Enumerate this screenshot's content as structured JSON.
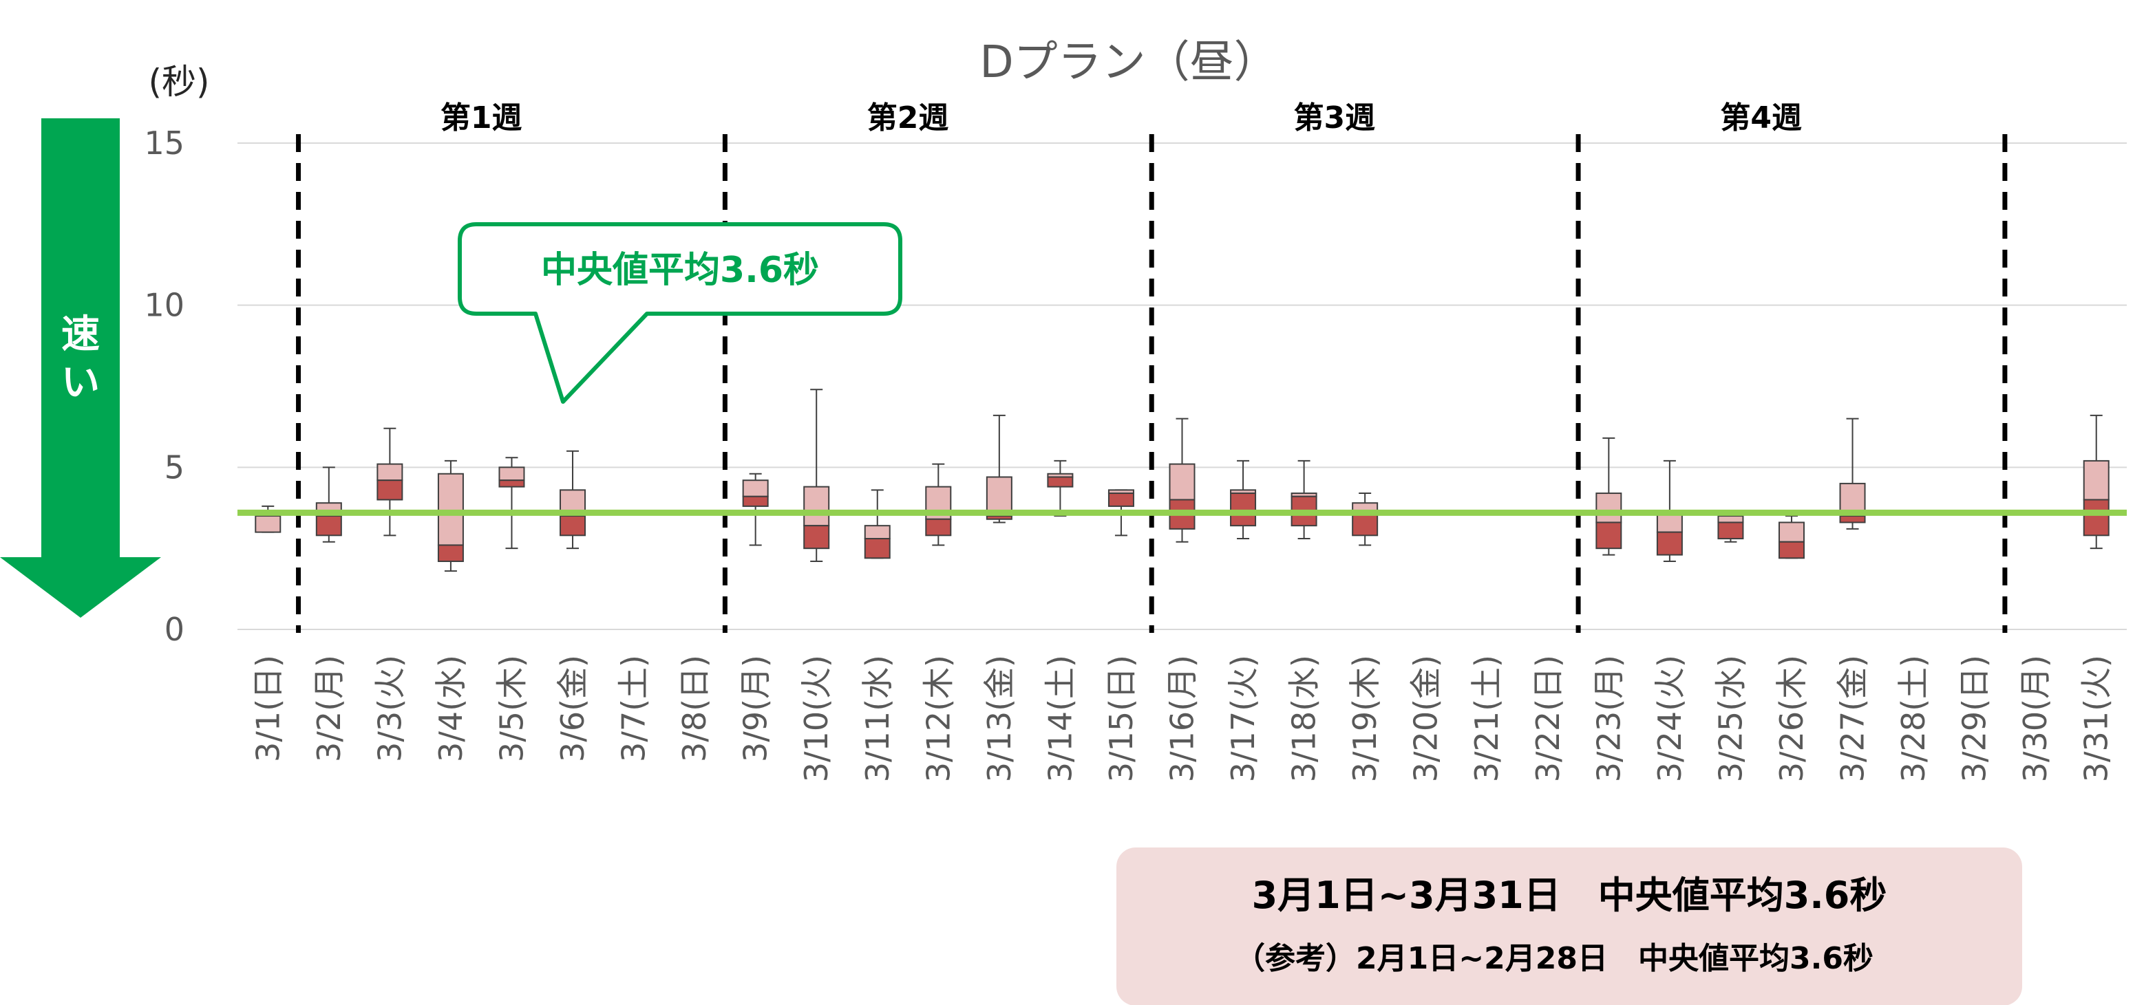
{
  "chart_data": {
    "type": "boxplot",
    "title": "Dプラン（昼）",
    "ylabel": "(秒)",
    "ylim": [
      0,
      15
    ],
    "yticks": [
      0,
      5,
      10,
      15
    ],
    "categories": [
      "3/1(日)",
      "3/2(月)",
      "3/3(火)",
      "3/4(水)",
      "3/5(木)",
      "3/6(金)",
      "3/7(土)",
      "3/8(日)",
      "3/9(月)",
      "3/10(火)",
      "3/11(水)",
      "3/12(木)",
      "3/13(金)",
      "3/14(土)",
      "3/15(日)",
      "3/16(月)",
      "3/17(火)",
      "3/18(水)",
      "3/19(木)",
      "3/20(金)",
      "3/21(土)",
      "3/22(日)",
      "3/23(月)",
      "3/24(火)",
      "3/25(水)",
      "3/26(木)",
      "3/27(金)",
      "3/28(土)",
      "3/29(日)",
      "3/30(月)",
      "3/31(火)"
    ],
    "boxes": [
      {
        "min": 3.0,
        "q1": 3.0,
        "median": 3.0,
        "q3": 3.5,
        "max": 3.8
      },
      {
        "min": 2.7,
        "q1": 2.9,
        "median": 3.5,
        "q3": 3.9,
        "max": 5.0
      },
      {
        "min": 2.9,
        "q1": 4.0,
        "median": 4.6,
        "q3": 5.1,
        "max": 6.2
      },
      {
        "min": 1.8,
        "q1": 2.1,
        "median": 2.6,
        "q3": 4.8,
        "max": 5.2
      },
      {
        "min": 2.5,
        "q1": 4.4,
        "median": 4.6,
        "q3": 5.0,
        "max": 5.3
      },
      {
        "min": 2.5,
        "q1": 2.9,
        "median": 3.5,
        "q3": 4.3,
        "max": 5.5
      },
      null,
      null,
      {
        "min": 2.6,
        "q1": 3.8,
        "median": 4.1,
        "q3": 4.6,
        "max": 4.8
      },
      {
        "min": 2.1,
        "q1": 2.5,
        "median": 3.2,
        "q3": 4.4,
        "max": 7.4
      },
      {
        "min": 2.2,
        "q1": 2.2,
        "median": 2.8,
        "q3": 3.2,
        "max": 4.3
      },
      {
        "min": 2.6,
        "q1": 2.9,
        "median": 3.4,
        "q3": 4.4,
        "max": 5.1
      },
      {
        "min": 3.3,
        "q1": 3.4,
        "median": 3.5,
        "q3": 4.7,
        "max": 6.6
      },
      {
        "min": 3.5,
        "q1": 4.4,
        "median": 4.7,
        "q3": 4.8,
        "max": 5.2
      },
      {
        "min": 2.9,
        "q1": 3.8,
        "median": 4.2,
        "q3": 4.3,
        "max": 4.3
      },
      {
        "min": 2.7,
        "q1": 3.1,
        "median": 4.0,
        "q3": 5.1,
        "max": 6.5
      },
      {
        "min": 2.8,
        "q1": 3.2,
        "median": 4.2,
        "q3": 4.3,
        "max": 5.2
      },
      {
        "min": 2.8,
        "q1": 3.2,
        "median": 4.1,
        "q3": 4.2,
        "max": 5.2
      },
      {
        "min": 2.6,
        "q1": 2.9,
        "median": 3.6,
        "q3": 3.9,
        "max": 4.2
      },
      null,
      null,
      null,
      {
        "min": 2.3,
        "q1": 2.5,
        "median": 3.3,
        "q3": 4.2,
        "max": 5.9
      },
      {
        "min": 2.1,
        "q1": 2.3,
        "median": 3.0,
        "q3": 3.6,
        "max": 5.2
      },
      {
        "min": 2.7,
        "q1": 2.8,
        "median": 3.3,
        "q3": 3.5,
        "max": 3.5
      },
      {
        "min": 2.2,
        "q1": 2.2,
        "median": 2.7,
        "q3": 3.3,
        "max": 3.5
      },
      {
        "min": 3.1,
        "q1": 3.3,
        "median": 3.5,
        "q3": 4.5,
        "max": 6.5
      },
      null,
      null,
      null,
      {
        "min": 2.5,
        "q1": 2.9,
        "median": 4.0,
        "q3": 5.2,
        "max": 6.6
      }
    ],
    "reference_line": {
      "value": 3.6,
      "label": "中央値平均3.6秒"
    },
    "week_dividers_after_index": [
      0,
      7,
      14,
      21,
      28
    ],
    "weeks": [
      {
        "label": "第1週",
        "from": 1,
        "to": 7
      },
      {
        "label": "第2週",
        "from": 8,
        "to": 14
      },
      {
        "label": "第3週",
        "from": 15,
        "to": 21
      },
      {
        "label": "第4週",
        "from": 22,
        "to": 28
      }
    ],
    "colors": {
      "box_upper": "#e6b8b7",
      "box_lower": "#c0504d",
      "box_stroke": "#3f3f3f",
      "reference_line": "#92d050",
      "accent_green": "#00a651",
      "summary_bg": "#f2dcdb",
      "gridline": "#d9d9d9"
    },
    "grid": true
  },
  "fast_arrow": {
    "label_chars": [
      "速",
      "い"
    ]
  },
  "summary": {
    "line1": "3月1日~3月31日　中央値平均3.6秒",
    "line2": "（参考）2月1日~2月28日　中央値平均3.6秒"
  }
}
